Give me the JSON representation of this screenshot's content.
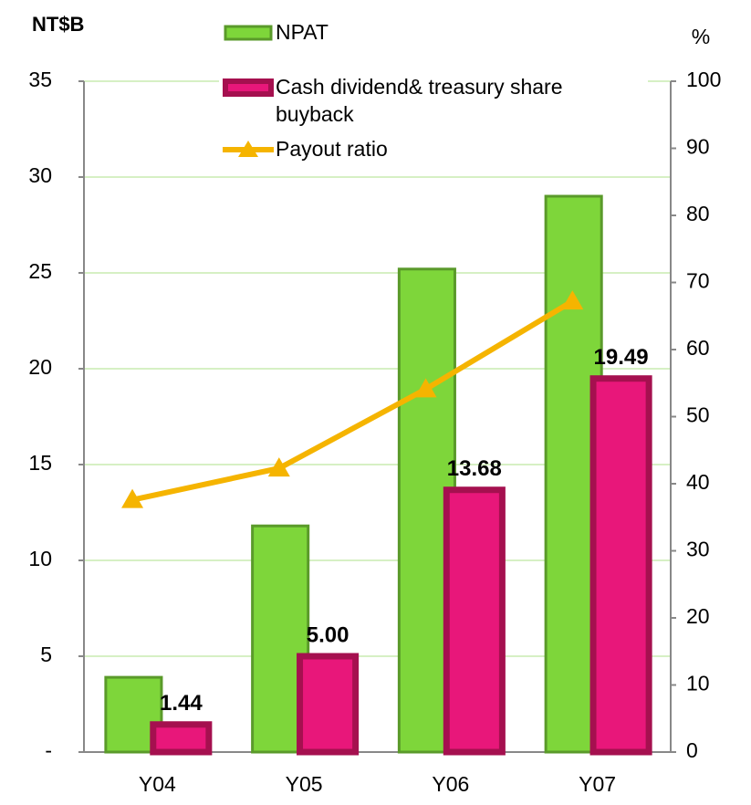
{
  "chart_data": {
    "type": "bar",
    "y_label": "NT$B",
    "y2_label": "%",
    "categories": [
      "Y04",
      "Y05",
      "Y06",
      "Y07"
    ],
    "series": [
      {
        "name": "NPAT",
        "color": "#7ed63a",
        "values": [
          3.9,
          11.8,
          25.2,
          29.0
        ]
      },
      {
        "name": "Cash dividend& treasury share buyback",
        "color": "#e8177a",
        "values": [
          1.44,
          5.0,
          13.68,
          19.49
        ],
        "value_labels": [
          "1.44",
          "5.00",
          "13.68",
          "19.49"
        ]
      },
      {
        "name": "Payout ratio",
        "color": "#f5b400",
        "type": "line",
        "axis": "y2",
        "values": [
          37.6,
          42.3,
          54.1,
          67.2
        ]
      }
    ],
    "ylim": [
      0,
      35
    ],
    "yticks": [
      {
        "value": 0,
        "label": "-"
      },
      5,
      10,
      15,
      20,
      25,
      30,
      35
    ],
    "y2lim": [
      0,
      100
    ],
    "y2ticks": [
      0,
      10,
      20,
      30,
      40,
      50,
      60,
      70,
      80,
      90,
      100
    ],
    "grid": true
  }
}
